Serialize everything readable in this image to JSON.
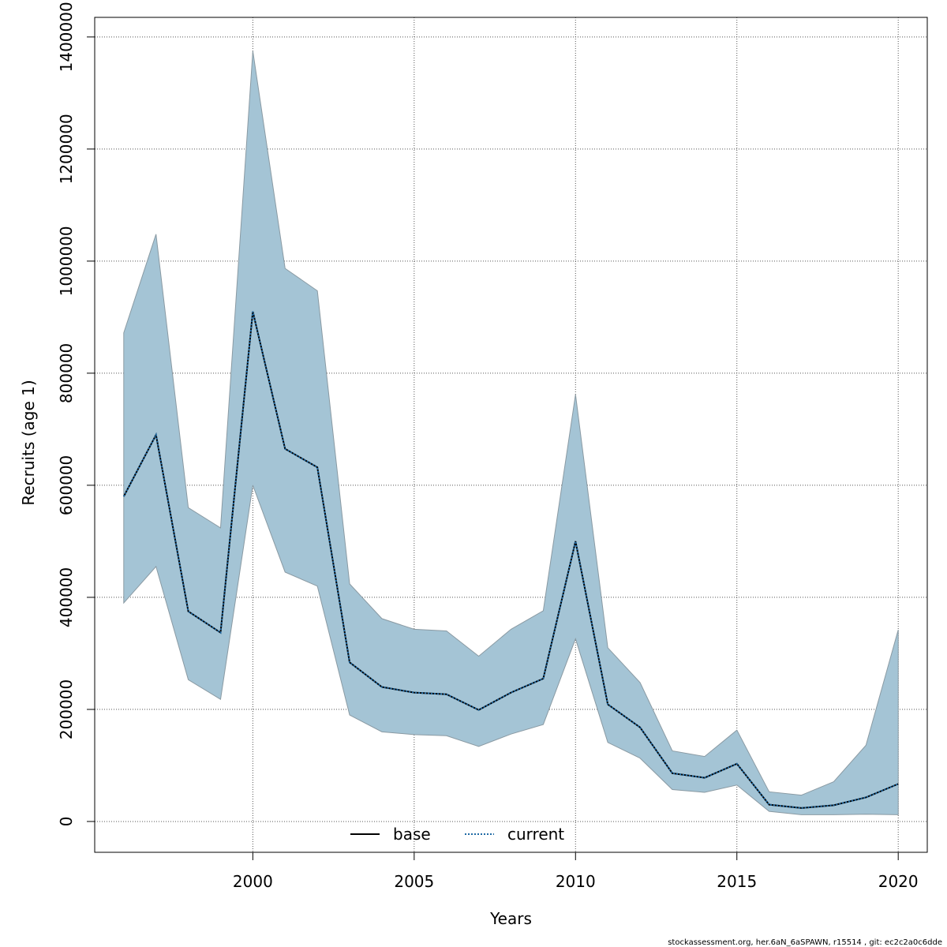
{
  "chart_data": {
    "type": "line",
    "xlabel": "Years",
    "ylabel": "Recruits (age 1)",
    "xlim": [
      1995.1,
      2020.9
    ],
    "ylim": [
      -55000,
      1435000
    ],
    "x_ticks": [
      2000,
      2005,
      2010,
      2015,
      2020
    ],
    "y_ticks": [
      0,
      200000,
      400000,
      600000,
      800000,
      1000000,
      1200000,
      1400000
    ],
    "grid": true,
    "legend_position": "bottom",
    "x": [
      1996,
      1997,
      1998,
      1999,
      2000,
      2001,
      2002,
      2003,
      2004,
      2005,
      2006,
      2007,
      2008,
      2009,
      2010,
      2011,
      2012,
      2013,
      2014,
      2015,
      2016,
      2017,
      2018,
      2019,
      2020
    ],
    "band": {
      "lower": [
        390000,
        455000,
        253000,
        218000,
        600000,
        445000,
        420000,
        190000,
        160000,
        155000,
        153000,
        134000,
        156000,
        173000,
        326000,
        141000,
        113000,
        57000,
        52000,
        65000,
        18000,
        12000,
        12000,
        13000,
        12000
      ],
      "upper": [
        872000,
        1048000,
        560000,
        524000,
        1375000,
        987000,
        947000,
        424000,
        362000,
        343000,
        340000,
        295000,
        343000,
        376000,
        762000,
        310000,
        248000,
        126000,
        116000,
        163000,
        53000,
        47000,
        71000,
        136000,
        342000
      ],
      "color": "#a4c4d5"
    },
    "series": [
      {
        "name": "base",
        "style": "solid",
        "color": "#000000",
        "values": [
          580000,
          690000,
          375000,
          337000,
          910000,
          665000,
          632000,
          284000,
          240000,
          230000,
          227000,
          199000,
          230000,
          255000,
          500000,
          209000,
          168000,
          86000,
          78000,
          103000,
          30000,
          24000,
          29000,
          43000,
          67000
        ]
      },
      {
        "name": "current",
        "style": "dotted",
        "color": "#1f6aa5",
        "values": [
          580000,
          690000,
          375000,
          337000,
          910000,
          665000,
          632000,
          284000,
          240000,
          230000,
          227000,
          199000,
          230000,
          255000,
          500000,
          209000,
          168000,
          86000,
          78000,
          103000,
          30000,
          24000,
          29000,
          43000,
          67000
        ]
      }
    ],
    "footnote": "stockassessment.org, her.6aN_6aSPAWN, r15514 , git: ec2c2a0c6dde"
  }
}
